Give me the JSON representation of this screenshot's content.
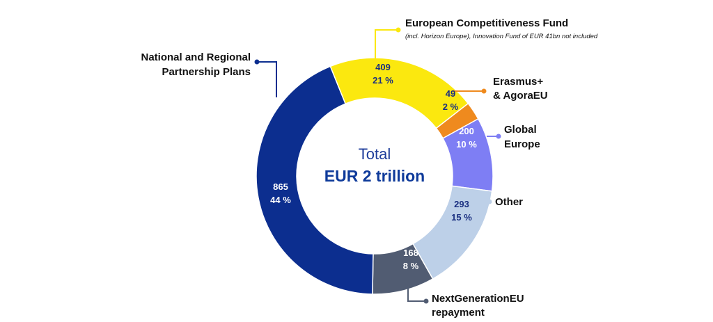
{
  "chart_data": {
    "type": "pie",
    "center": {
      "line1": "Total",
      "line2": "EUR 2 trillion"
    },
    "slices": [
      {
        "label": "European Competitiveness Fund",
        "value": 409,
        "percent": "21 %",
        "color": "#fbe80f",
        "text_color": "#1a2f80"
      },
      {
        "label": "Erasmus+ & AgoraEU",
        "value": 49,
        "percent": "2 %",
        "color": "#ef8a1e",
        "text_color": "#1a2f80"
      },
      {
        "label": "Global Europe",
        "value": 200,
        "percent": "10 %",
        "color": "#7e7ef4",
        "text_color": "#ffffff"
      },
      {
        "label": "Other",
        "value": 293,
        "percent": "15 %",
        "color": "#bdd0e8",
        "text_color": "#1a2f80"
      },
      {
        "label": "NextGenerationEU repayment",
        "value": 168,
        "percent": "8 %",
        "color": "#515c72",
        "text_color": "#ffffff"
      },
      {
        "label": "National and Regional Partnership Plans",
        "value": 865,
        "percent": "44 %",
        "color": "#0c2e8f",
        "text_color": "#ffffff"
      }
    ]
  },
  "labels": {
    "ecf_line1": "European Competitiveness Fund",
    "ecf_note": "(incl. Horizon Europe), Innovation Fund of EUR 41bn not included",
    "erasmus_line1": "Erasmus+",
    "erasmus_line2": "& AgoraEU",
    "global_line1": "Global",
    "global_line2": "Europe",
    "other": "Other",
    "ngeu_line1": "NextGenerationEU",
    "ngeu_line2": "repayment",
    "nrpp_line1": "National and Regional",
    "nrpp_line2": "Partnership Plans"
  }
}
